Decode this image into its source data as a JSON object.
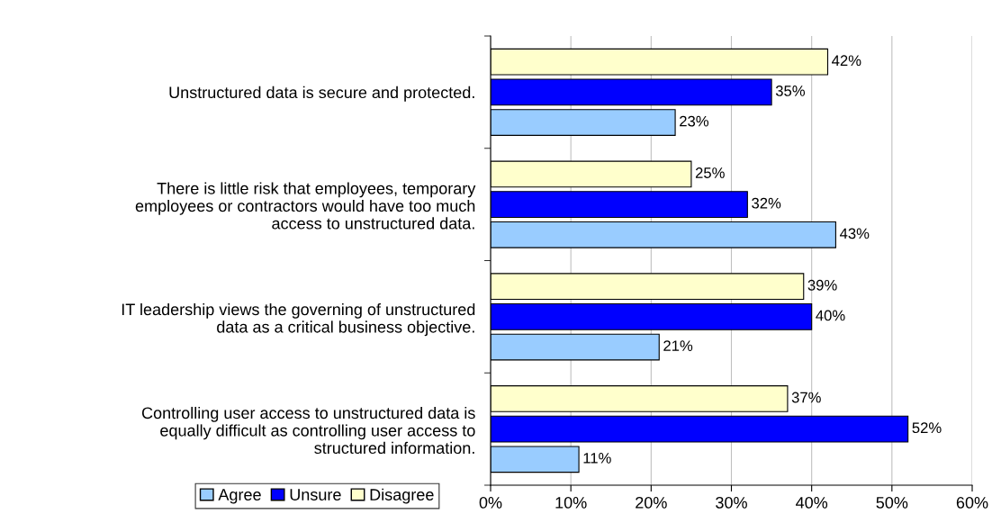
{
  "chart_data": {
    "type": "bar",
    "orientation": "horizontal",
    "categories": [
      "Unstructured data is secure and protected.",
      "There is little risk that employees, temporary\nemployees or contractors would have too much\naccess to unstructured data.",
      "IT leadership views the governing of unstructured\ndata as a critical business objective.",
      "Controlling user access to unstructured data is\nequally difficult as controlling user access to\nstructured information."
    ],
    "series": [
      {
        "name": "Agree",
        "color": "#99ccff",
        "values": [
          23,
          43,
          21,
          11
        ],
        "value_labels": [
          "23%",
          "43%",
          "21%",
          "11%"
        ]
      },
      {
        "name": "Unsure",
        "color": "#0000ff",
        "values": [
          35,
          32,
          40,
          52
        ],
        "value_labels": [
          "35%",
          "32%",
          "40%",
          "52%"
        ]
      },
      {
        "name": "Disagree",
        "color": "#ffffcc",
        "values": [
          42,
          25,
          39,
          37
        ],
        "value_labels": [
          "42%",
          "25%",
          "39%",
          "37%"
        ]
      }
    ],
    "xlim": [
      0,
      60
    ],
    "xticks": [
      {
        "value": 0,
        "label": "0%"
      },
      {
        "value": 10,
        "label": "10%"
      },
      {
        "value": 20,
        "label": "20%"
      },
      {
        "value": 30,
        "label": "30%"
      },
      {
        "value": 40,
        "label": "40%"
      },
      {
        "value": 50,
        "label": "50%"
      },
      {
        "value": 60,
        "label": "60%"
      }
    ],
    "grid": "x",
    "legend": "bottom left"
  }
}
